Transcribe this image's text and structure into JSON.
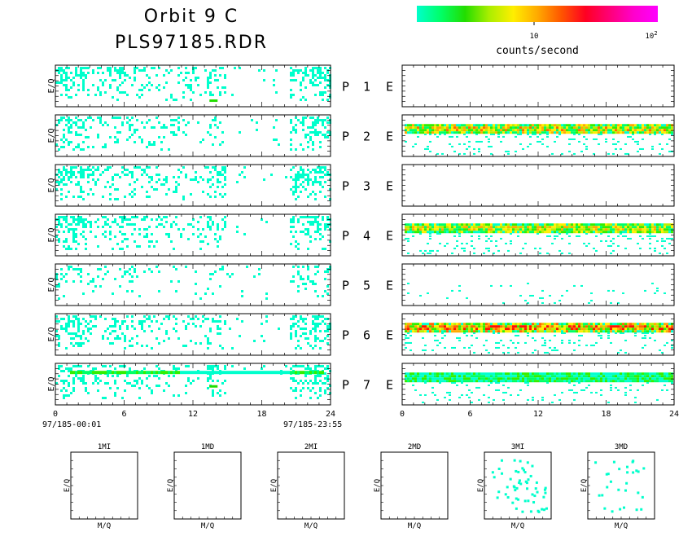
{
  "title": {
    "line1": "Orbit 9 C",
    "line2": "PLS97185.RDR"
  },
  "colorbar": {
    "label": "counts/second",
    "tick_10": "10",
    "tick_100_base": "10",
    "tick_100_exp": "2",
    "colors": [
      "#00ffcc",
      "#00ff66",
      "#22dd00",
      "#aaee00",
      "#ffee00",
      "#ffaa00",
      "#ff5500",
      "#ff0022",
      "#ff0077",
      "#ff00cc",
      "#ff00ff"
    ]
  },
  "chart_data": [
    {
      "type": "heatmap",
      "name": "ion-panels",
      "ylabel": "E/Q",
      "rows": [
        {
          "label": "P",
          "num": "1",
          "suffix": "E",
          "left_density": 0.45,
          "left_hot": 0.0,
          "left_band": 0.55,
          "right_density": 0.0,
          "right_band": 0.0,
          "right_hot": 0.0
        },
        {
          "label": "P",
          "num": "2",
          "suffix": "E",
          "left_density": 0.35,
          "left_hot": 0.0,
          "left_band": 0.0,
          "right_density": 0.95,
          "right_band": 0.3,
          "right_hot": 0.6
        },
        {
          "label": "P",
          "num": "3",
          "suffix": "E",
          "left_density": 0.4,
          "left_hot": 0.0,
          "left_band": 0.0,
          "right_density": 0.0,
          "right_band": 0.0,
          "right_hot": 0.0
        },
        {
          "label": "P",
          "num": "4",
          "suffix": "E",
          "left_density": 0.4,
          "left_hot": 0.0,
          "left_band": 0.0,
          "right_density": 0.9,
          "right_band": 0.2,
          "right_hot": 0.5
        },
        {
          "label": "P",
          "num": "5",
          "suffix": "E",
          "left_density": 0.2,
          "left_hot": 0.0,
          "left_band": 0.0,
          "right_density": 0.15,
          "right_band": 0.3,
          "right_hot": 0.0
        },
        {
          "label": "P",
          "num": "6",
          "suffix": "E",
          "left_density": 0.4,
          "left_hot": 0.0,
          "left_band": 0.0,
          "right_density": 0.95,
          "right_band": 0.25,
          "right_hot": 0.75
        },
        {
          "label": "P",
          "num": "7",
          "suffix": "E",
          "left_density": 0.4,
          "left_hot": 0.3,
          "left_band": 0.25,
          "right_density": 0.7,
          "right_band": 0.3,
          "right_hot": 0.1
        }
      ],
      "x_ticks": [
        "0",
        "6",
        "12",
        "18",
        "24"
      ],
      "xlim": [
        0,
        24
      ],
      "start_label": "97/185-00:01",
      "end_label": "97/185-23:55"
    },
    {
      "type": "scatter",
      "name": "mass-panels",
      "xlabel": "M/Q",
      "ylabel": "E/Q",
      "panels": [
        {
          "title": "1MI",
          "points": 0
        },
        {
          "title": "1MD",
          "points": 0
        },
        {
          "title": "2MI",
          "points": 0
        },
        {
          "title": "2MD",
          "points": 0
        },
        {
          "title": "3MI",
          "points": 55
        },
        {
          "title": "3MD",
          "points": 28
        }
      ]
    }
  ]
}
